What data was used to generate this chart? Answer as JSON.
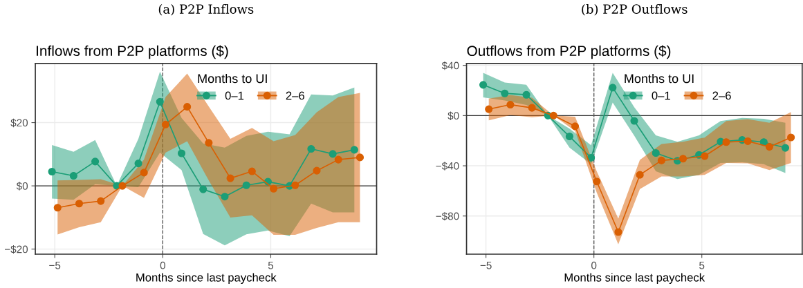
{
  "chart_data": [
    {
      "type": "line",
      "title": "Inflows from P2P platforms ($)",
      "annotations": [
        "(a) P2P Inflows"
      ],
      "xlabel": "Months since last paycheck",
      "legend_title": "Months to UI",
      "legend": "top right",
      "grid": true,
      "marker": "circle",
      "line_style": "solid",
      "xlim": [
        -5.9,
        9.9
      ],
      "xticks": [
        {
          "value": -5,
          "label": "−5"
        },
        0,
        5
      ],
      "ylim": [
        -21.6,
        38.7
      ],
      "yticks": [
        {
          "value": -20,
          "label": "−$20"
        },
        {
          "value": 0,
          "label": "$0"
        },
        {
          "value": 20,
          "label": "$20"
        }
      ],
      "ref_lines": [
        {
          "axis": "y",
          "value": 0,
          "color": "#333333",
          "line_style": "solid"
        },
        {
          "axis": "x",
          "value": 0,
          "color": "#555555",
          "line_style": "dashed"
        }
      ],
      "series": [
        {
          "name": "0–1",
          "color": "#1b9e77",
          "x": [
            -5.13,
            -4.13,
            -3.13,
            -2.13,
            -1.13,
            -0.13,
            0.87,
            1.87,
            2.87,
            3.87,
            4.87,
            5.87,
            6.87,
            7.87,
            8.87
          ],
          "values": [
            4.5,
            3.2,
            7.7,
            0,
            7.1,
            26.6,
            10.3,
            -1.1,
            -3.4,
            0.2,
            1.3,
            0,
            11.7,
            10.1,
            11.4
          ],
          "lower": [
            -4.0,
            -4.4,
            0.5,
            0,
            -0.4,
            10.5,
            5.0,
            -15.2,
            -18.8,
            -15.3,
            -14.1,
            -15.9,
            -5.6,
            -8.4,
            -8.4
          ],
          "upper": [
            12.9,
            10.8,
            14.5,
            0,
            14.9,
            36.1,
            21.5,
            13.4,
            12.1,
            15.8,
            17.1,
            16.3,
            28.9,
            28.6,
            31.1
          ]
        },
        {
          "name": "2–6",
          "color": "#d95f02",
          "x": [
            -4.87,
            -3.87,
            -2.87,
            -1.87,
            -0.87,
            0.13,
            1.13,
            2.13,
            3.13,
            4.13,
            5.13,
            6.13,
            7.13,
            8.13,
            9.13
          ],
          "values": [
            -6.9,
            -5.6,
            -4.8,
            0,
            4.2,
            19.4,
            25.0,
            13.6,
            2.4,
            4.6,
            -0.9,
            0.2,
            4.8,
            8.3,
            9.0
          ],
          "lower": [
            -15.4,
            -13.1,
            -11.5,
            0,
            -3.8,
            10.5,
            14.1,
            1.7,
            -10.0,
            -9.3,
            -15.5,
            -15.5,
            -13.3,
            -11.5,
            -11.5
          ],
          "upper": [
            1.7,
            1.9,
            2.1,
            0,
            8.3,
            28.1,
            35.5,
            25.1,
            14.9,
            18.3,
            14.1,
            16.1,
            23.3,
            28.1,
            29.4
          ]
        }
      ]
    },
    {
      "type": "line",
      "title": "Outflows from P2P platforms ($)",
      "annotations": [
        "(b) P2P Outflows"
      ],
      "xlabel": "Months since last paycheck",
      "legend_title": "Months to UI",
      "legend": "top right",
      "grid": true,
      "marker": "circle",
      "line_style": "solid",
      "xlim": [
        -5.9,
        9.65
      ],
      "xticks": [
        {
          "value": -5,
          "label": "−5"
        },
        0,
        5
      ],
      "ylim": [
        -110.4,
        41.5
      ],
      "yticks": [
        {
          "value": -80,
          "label": "−$80"
        },
        {
          "value": -40,
          "label": "−$40"
        },
        {
          "value": 0,
          "label": "$0"
        },
        {
          "value": 40,
          "label": "$40"
        }
      ],
      "ref_lines": [
        {
          "axis": "y",
          "value": 0,
          "color": "#333333",
          "line_style": "solid"
        },
        {
          "axis": "x",
          "value": 0,
          "color": "#555555",
          "line_style": "dashed"
        }
      ],
      "series": [
        {
          "name": "0–1",
          "color": "#1b9e77",
          "x": [
            -5.13,
            -4.13,
            -3.13,
            -2.13,
            -1.13,
            -0.13,
            0.87,
            1.87,
            2.87,
            3.87,
            4.87,
            5.87,
            6.87,
            7.87,
            8.87
          ],
          "values": [
            24.5,
            17.7,
            16.6,
            0,
            -16.6,
            -33.6,
            22.3,
            -4.2,
            -29.8,
            -36.0,
            -31.3,
            -20.8,
            -19.4,
            -21.1,
            -25.7
          ],
          "lower": [
            14.5,
            12.0,
            8.5,
            0,
            -25.5,
            -38.7,
            10.4,
            -16.0,
            -44.3,
            -50.6,
            -47.2,
            -37.7,
            -37.2,
            -38.7,
            -45.7
          ],
          "upper": [
            34.0,
            26.4,
            24.5,
            0,
            -10.4,
            -23.6,
            34.0,
            6.6,
            -15.7,
            -20.8,
            -15.7,
            -4.3,
            -1.9,
            -2.5,
            -5.7
          ]
        },
        {
          "name": "2–6",
          "color": "#d95f02",
          "x": [
            -4.87,
            -3.87,
            -2.87,
            -1.87,
            -0.87,
            0.13,
            1.13,
            2.13,
            3.13,
            4.13,
            5.13,
            6.13,
            7.13,
            8.13,
            9.13
          ],
          "values": [
            5.1,
            8.7,
            6.2,
            0,
            -8.5,
            -52.5,
            -92.8,
            -47.2,
            -35.8,
            -34.3,
            -32.3,
            -21.1,
            -20.4,
            -24.9,
            -17.4
          ],
          "lower": [
            -3.8,
            0.4,
            -1.3,
            0,
            -12.3,
            -61.3,
            -102.5,
            -58.5,
            -48.5,
            -48.5,
            -47.2,
            -37.7,
            -38.1,
            -43.4,
            -37.7
          ],
          "upper": [
            13.6,
            16.4,
            14.2,
            0,
            -0.9,
            -44.3,
            -82.1,
            -35.3,
            -22.6,
            -20.8,
            -17.5,
            -4.3,
            -2.8,
            -5.7,
            2.8
          ]
        }
      ]
    }
  ]
}
